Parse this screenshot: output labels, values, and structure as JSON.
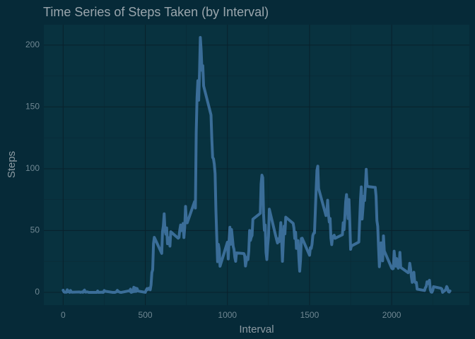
{
  "chart_data": {
    "type": "line",
    "title": "Time Series of Steps Taken (by Interval)",
    "x_label": "Interval",
    "y_label": "Steps",
    "x": [
      0,
      5,
      10,
      15,
      20,
      25,
      30,
      35,
      40,
      45,
      50,
      55,
      100,
      105,
      110,
      115,
      120,
      125,
      130,
      135,
      140,
      145,
      150,
      155,
      200,
      205,
      210,
      215,
      220,
      225,
      230,
      235,
      240,
      245,
      250,
      255,
      300,
      305,
      310,
      315,
      320,
      325,
      330,
      335,
      340,
      345,
      350,
      355,
      400,
      405,
      410,
      415,
      420,
      425,
      430,
      435,
      440,
      445,
      450,
      455,
      500,
      505,
      510,
      515,
      520,
      525,
      530,
      535,
      540,
      545,
      550,
      555,
      600,
      605,
      610,
      615,
      620,
      625,
      630,
      635,
      640,
      645,
      650,
      655,
      700,
      705,
      710,
      715,
      720,
      725,
      730,
      735,
      740,
      745,
      750,
      755,
      800,
      805,
      810,
      815,
      820,
      825,
      830,
      835,
      840,
      845,
      850,
      855,
      900,
      905,
      910,
      915,
      920,
      925,
      930,
      935,
      940,
      945,
      950,
      955,
      1000,
      1005,
      1010,
      1015,
      1020,
      1025,
      1030,
      1035,
      1040,
      1045,
      1050,
      1055,
      1100,
      1105,
      1110,
      1115,
      1120,
      1125,
      1130,
      1135,
      1140,
      1145,
      1150,
      1155,
      1200,
      1205,
      1210,
      1215,
      1220,
      1225,
      1230,
      1235,
      1240,
      1245,
      1250,
      1255,
      1300,
      1305,
      1310,
      1315,
      1320,
      1325,
      1330,
      1335,
      1340,
      1345,
      1350,
      1355,
      1400,
      1405,
      1410,
      1415,
      1420,
      1425,
      1430,
      1435,
      1440,
      1445,
      1450,
      1455,
      1500,
      1505,
      1510,
      1515,
      1520,
      1525,
      1530,
      1535,
      1540,
      1545,
      1550,
      1555,
      1600,
      1605,
      1610,
      1615,
      1620,
      1625,
      1630,
      1635,
      1640,
      1645,
      1650,
      1655,
      1700,
      1705,
      1710,
      1715,
      1720,
      1725,
      1730,
      1735,
      1740,
      1745,
      1750,
      1755,
      1800,
      1805,
      1810,
      1815,
      1820,
      1825,
      1830,
      1835,
      1840,
      1845,
      1850,
      1855,
      1900,
      1905,
      1910,
      1915,
      1920,
      1925,
      1930,
      1935,
      1940,
      1945,
      1950,
      1955,
      2000,
      2005,
      2010,
      2015,
      2020,
      2025,
      2030,
      2035,
      2040,
      2045,
      2050,
      2055,
      2100,
      2105,
      2110,
      2115,
      2120,
      2125,
      2130,
      2135,
      2140,
      2145,
      2150,
      2155,
      2200,
      2205,
      2210,
      2215,
      2220,
      2225,
      2230,
      2235,
      2240,
      2245,
      2250,
      2255,
      2300,
      2305,
      2310,
      2315,
      2320,
      2325,
      2330,
      2335,
      2340,
      2345,
      2350,
      2355
    ],
    "series": [
      {
        "color": "#3a6d98",
        "values": [
          1.7,
          0.3,
          0.1,
          0.2,
          0.1,
          2.1,
          0.5,
          0.9,
          0,
          1.5,
          0.3,
          0.1,
          0.3,
          0,
          0.2,
          0.3,
          0,
          1.1,
          1.8,
          0.2,
          0.2,
          0.4,
          0.3,
          0,
          0,
          0,
          1.1,
          0,
          0,
          0.1,
          0,
          0.2,
          0,
          0,
          1.5,
          0.9,
          0,
          0,
          0,
          0,
          0.2,
          0.6,
          1.6,
          0.6,
          0.5,
          0.1,
          0,
          0,
          1.2,
          0.9,
          2.6,
          0,
          0.3,
          0.4,
          4.1,
          0.7,
          3.5,
          0.8,
          3.1,
          1.1,
          0,
          1.6,
          3,
          2.2,
          3.3,
          3,
          2.1,
          6.1,
          16,
          18.3,
          39.5,
          44.5,
          31.5,
          49.3,
          53.8,
          63.5,
          50,
          47.1,
          52.2,
          39.3,
          44,
          44.2,
          37.4,
          49,
          43.8,
          44.4,
          50.5,
          54.5,
          49.9,
          51,
          55.7,
          44.3,
          52.3,
          69.5,
          57.8,
          56.2,
          73.4,
          68.2,
          129.4,
          157.5,
          171.2,
          155.4,
          177.3,
          206.2,
          195.9,
          179.6,
          183.4,
          167,
          143.5,
          124,
          109.1,
          108.1,
          103.7,
          96,
          66.2,
          45.2,
          24.8,
          38.8,
          35,
          21.1,
          40.6,
          27,
          42.4,
          52.7,
          38.9,
          50.8,
          44.3,
          37.4,
          34.7,
          28.3,
          25.1,
          31.9,
          31.4,
          29.7,
          21.3,
          25.5,
          28.4,
          26.5,
          33.4,
          50,
          42,
          44.6,
          46,
          59.2,
          63.9,
          87.7,
          94.8,
          92.8,
          63.4,
          50.2,
          54.5,
          32.4,
          26.5,
          37.7,
          45.1,
          67.3,
          42.3,
          39.9,
          43.3,
          41,
          46.2,
          56.4,
          42.8,
          25.1,
          40,
          53.5,
          47.3,
          60.8,
          55.8,
          52,
          43.6,
          48.7,
          35.5,
          37.5,
          41.8,
          27.5,
          17.1,
          26.1,
          43.6,
          43.8,
          30,
          36.1,
          35.5,
          38.8,
          46,
          47.8,
          48.1,
          65.3,
          82.9,
          98.7,
          102.1,
          84,
          62.1,
          64.1,
          74.5,
          63.2,
          56.9,
          59.8,
          43.9,
          38.6,
          44.7,
          45.5,
          46.2,
          43.7,
          46.6,
          56.3,
          50.7,
          61.2,
          73.4,
          79.1,
          68.9,
          59.7,
          75.1,
          56.5,
          34.8,
          37.5,
          40.7,
          58,
          74.7,
          85.3,
          59.3,
          67.8,
          77.7,
          74.2,
          85.3,
          99.5,
          86.6,
          85.6,
          84.9,
          77.8,
          58,
          53.4,
          36.3,
          20.7,
          27.4,
          40,
          30.2,
          25.5,
          45.7,
          33.5,
          19.6,
          19,
          19.3,
          33.3,
          26.8,
          21.2,
          27.3,
          21.3,
          19.5,
          21.3,
          32.3,
          20.2,
          15.9,
          17.2,
          23.5,
          19.2,
          12.5,
          8.1,
          14.7,
          16.3,
          8.7,
          7.8,
          8.1,
          2.6,
          1.5,
          3.7,
          4.8,
          8.5,
          7.1,
          8.7,
          9.8,
          2.2,
          0.3,
          0.1,
          1.6,
          4.6,
          3.3,
          2.8,
          0,
          0.8,
          1,
          1.6,
          2.6,
          4.7,
          3.3,
          0.6,
          0.2,
          1.1
        ]
      }
    ],
    "xlim": [
      -117.75,
      2472.75
    ],
    "xticks": [
      0,
      500,
      1000,
      1500,
      2000
    ],
    "x_minor_ticks": [
      250,
      750,
      1250,
      1750,
      2250
    ],
    "ylim": [
      -10.31,
      216.48
    ],
    "yticks": [
      0,
      50,
      100,
      150,
      200
    ],
    "y_minor_ticks": [
      25,
      75,
      125,
      175
    ],
    "grid": true
  }
}
